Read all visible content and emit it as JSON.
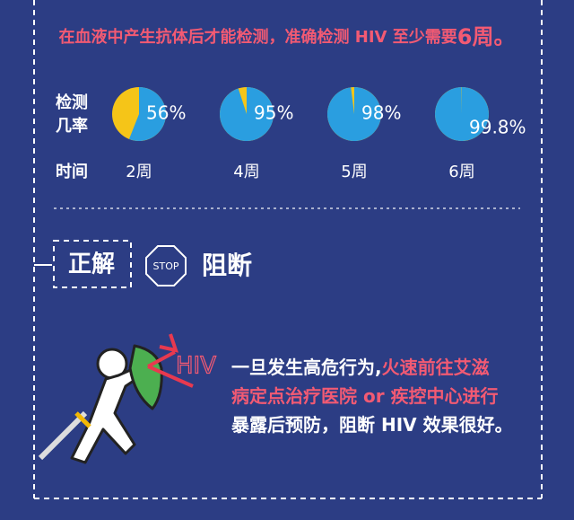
{
  "header": {
    "text": "在血液中产生抗体后才能检测，准确检测 HIV 至少需要",
    "emph": "6周。"
  },
  "detection": {
    "row_label": [
      "检测",
      "几率"
    ],
    "time_label": "时间",
    "values": [
      56,
      95,
      98,
      99.8
    ],
    "value_labels": [
      "56%",
      "95%",
      "98%",
      "99.8%"
    ],
    "times": [
      "2周",
      "4周",
      "5周",
      "6周"
    ]
  },
  "answer": {
    "tag": "正解",
    "stop": "STOP",
    "title": "阻断",
    "virus": "HIV",
    "lines": [
      [
        {
          "text": "一旦发生高危行为,",
          "highlight": false
        },
        {
          "text": "火速前往艾滋",
          "highlight": true
        }
      ],
      [
        {
          "text": "病定点治疗医院 or 疾控中心进行",
          "highlight": true
        }
      ],
      [
        {
          "text": "暴露后预防，阻断 HIV 效果很好。",
          "highlight": false
        }
      ]
    ]
  }
}
